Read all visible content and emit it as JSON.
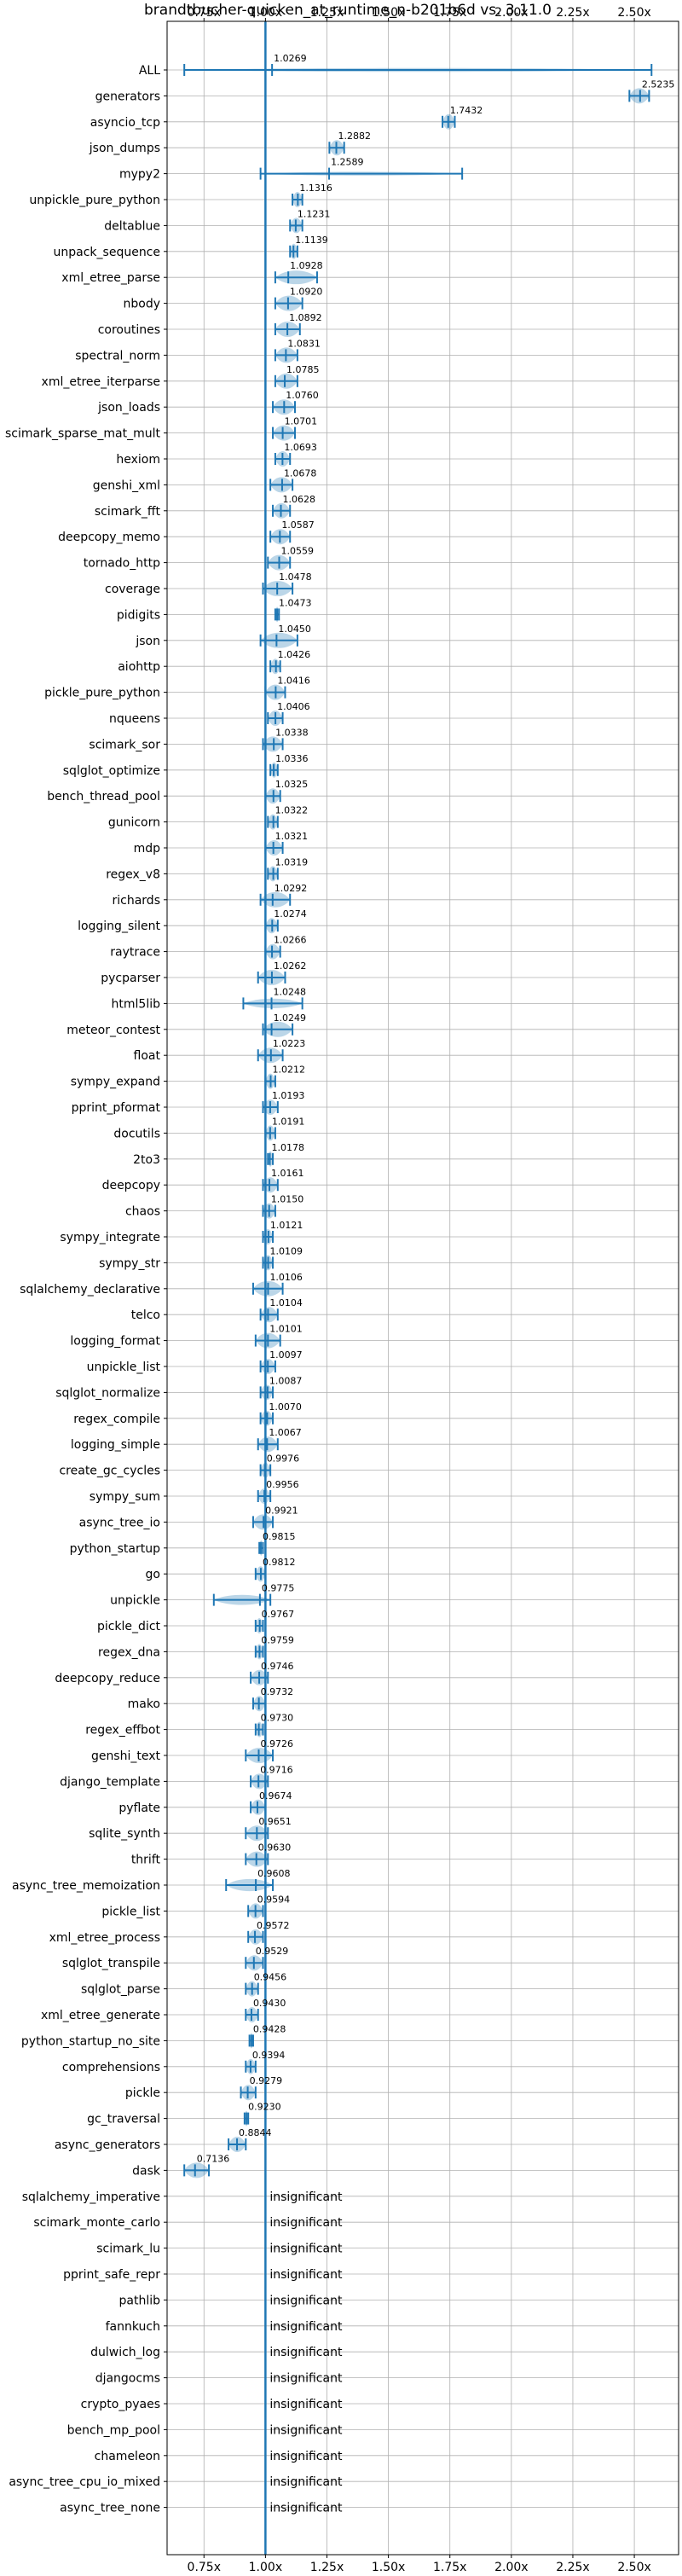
{
  "chart_data": {
    "type": "violin",
    "title": "brandtbucher-quicken_at_runtime_n-b201b6d vs. 3.11.0",
    "x_ticks": [
      "0.75x",
      "1.00x",
      "1.25x",
      "1.50x",
      "1.75x",
      "2.00x",
      "2.25x",
      "2.50x"
    ],
    "x_tick_values": [
      0.75,
      1.0,
      1.25,
      1.5,
      1.75,
      2.0,
      2.25,
      2.5
    ],
    "xlim": [
      0.6,
      2.68
    ],
    "reference_line": 1.0,
    "grid": true,
    "insignificant_label": "insignificant",
    "benchmarks": [
      {
        "name": "ALL",
        "mean": 1.0269,
        "label": "1.0269",
        "lo": 0.67,
        "hi": 2.57
      },
      {
        "name": "generators",
        "mean": 2.5235,
        "label": "2.5235",
        "lo": 2.48,
        "hi": 2.56
      },
      {
        "name": "asyncio_tcp",
        "mean": 1.7432,
        "label": "1.7432",
        "lo": 1.72,
        "hi": 1.77
      },
      {
        "name": "json_dumps",
        "mean": 1.2882,
        "label": "1.2882",
        "lo": 1.26,
        "hi": 1.32
      },
      {
        "name": "mypy2",
        "mean": 1.2589,
        "label": "1.2589",
        "lo": 0.98,
        "hi": 1.8
      },
      {
        "name": "unpickle_pure_python",
        "mean": 1.1316,
        "label": "1.1316",
        "lo": 1.11,
        "hi": 1.15
      },
      {
        "name": "deltablue",
        "mean": 1.1231,
        "label": "1.1231",
        "lo": 1.1,
        "hi": 1.15
      },
      {
        "name": "unpack_sequence",
        "mean": 1.1139,
        "label": "1.1139",
        "lo": 1.1,
        "hi": 1.13
      },
      {
        "name": "xml_etree_parse",
        "mean": 1.0928,
        "label": "1.0928",
        "lo": 1.04,
        "hi": 1.21
      },
      {
        "name": "nbody",
        "mean": 1.092,
        "label": "1.0920",
        "lo": 1.04,
        "hi": 1.15
      },
      {
        "name": "coroutines",
        "mean": 1.0892,
        "label": "1.0892",
        "lo": 1.04,
        "hi": 1.14
      },
      {
        "name": "spectral_norm",
        "mean": 1.0831,
        "label": "1.0831",
        "lo": 1.04,
        "hi": 1.13
      },
      {
        "name": "xml_etree_iterparse",
        "mean": 1.0785,
        "label": "1.0785",
        "lo": 1.04,
        "hi": 1.13
      },
      {
        "name": "json_loads",
        "mean": 1.076,
        "label": "1.0760",
        "lo": 1.03,
        "hi": 1.12
      },
      {
        "name": "scimark_sparse_mat_mult",
        "mean": 1.0701,
        "label": "1.0701",
        "lo": 1.03,
        "hi": 1.12
      },
      {
        "name": "hexiom",
        "mean": 1.0693,
        "label": "1.0693",
        "lo": 1.04,
        "hi": 1.1
      },
      {
        "name": "genshi_xml",
        "mean": 1.0678,
        "label": "1.0678",
        "lo": 1.02,
        "hi": 1.11
      },
      {
        "name": "scimark_fft",
        "mean": 1.0628,
        "label": "1.0628",
        "lo": 1.03,
        "hi": 1.1
      },
      {
        "name": "deepcopy_memo",
        "mean": 1.0587,
        "label": "1.0587",
        "lo": 1.02,
        "hi": 1.1
      },
      {
        "name": "tornado_http",
        "mean": 1.0559,
        "label": "1.0559",
        "lo": 1.01,
        "hi": 1.1
      },
      {
        "name": "coverage",
        "mean": 1.0478,
        "label": "1.0478",
        "lo": 0.99,
        "hi": 1.11
      },
      {
        "name": "pidigits",
        "mean": 1.0473,
        "label": "1.0473",
        "lo": 1.04,
        "hi": 1.055
      },
      {
        "name": "json",
        "mean": 1.045,
        "label": "1.0450",
        "lo": 0.98,
        "hi": 1.13
      },
      {
        "name": "aiohttp",
        "mean": 1.0426,
        "label": "1.0426",
        "lo": 1.02,
        "hi": 1.06
      },
      {
        "name": "pickle_pure_python",
        "mean": 1.0416,
        "label": "1.0416",
        "lo": 1.0,
        "hi": 1.08
      },
      {
        "name": "nqueens",
        "mean": 1.0406,
        "label": "1.0406",
        "lo": 1.01,
        "hi": 1.07
      },
      {
        "name": "scimark_sor",
        "mean": 1.0338,
        "label": "1.0338",
        "lo": 0.99,
        "hi": 1.07
      },
      {
        "name": "sqlglot_optimize",
        "mean": 1.0336,
        "label": "1.0336",
        "lo": 1.02,
        "hi": 1.05
      },
      {
        "name": "bench_thread_pool",
        "mean": 1.0325,
        "label": "1.0325",
        "lo": 1.0,
        "hi": 1.06
      },
      {
        "name": "gunicorn",
        "mean": 1.0322,
        "label": "1.0322",
        "lo": 1.01,
        "hi": 1.05
      },
      {
        "name": "mdp",
        "mean": 1.0321,
        "label": "1.0321",
        "lo": 1.0,
        "hi": 1.07
      },
      {
        "name": "regex_v8",
        "mean": 1.0319,
        "label": "1.0319",
        "lo": 1.01,
        "hi": 1.05
      },
      {
        "name": "richards",
        "mean": 1.0292,
        "label": "1.0292",
        "lo": 0.98,
        "hi": 1.1
      },
      {
        "name": "logging_silent",
        "mean": 1.0274,
        "label": "1.0274",
        "lo": 1.0,
        "hi": 1.05
      },
      {
        "name": "raytrace",
        "mean": 1.0266,
        "label": "1.0266",
        "lo": 1.0,
        "hi": 1.06
      },
      {
        "name": "pycparser",
        "mean": 1.0262,
        "label": "1.0262",
        "lo": 0.97,
        "hi": 1.08
      },
      {
        "name": "html5lib",
        "mean": 1.0248,
        "label": "1.0248",
        "lo": 0.91,
        "hi": 1.15
      },
      {
        "name": "meteor_contest",
        "mean": 1.0249,
        "label": "1.0249",
        "lo": 0.99,
        "hi": 1.11
      },
      {
        "name": "float",
        "mean": 1.0223,
        "label": "1.0223",
        "lo": 0.97,
        "hi": 1.07
      },
      {
        "name": "sympy_expand",
        "mean": 1.0212,
        "label": "1.0212",
        "lo": 1.0,
        "hi": 1.04
      },
      {
        "name": "pprint_pformat",
        "mean": 1.0193,
        "label": "1.0193",
        "lo": 0.99,
        "hi": 1.05
      },
      {
        "name": "docutils",
        "mean": 1.0191,
        "label": "1.0191",
        "lo": 1.0,
        "hi": 1.04
      },
      {
        "name": "2to3",
        "mean": 1.0178,
        "label": "1.0178",
        "lo": 1.01,
        "hi": 1.03
      },
      {
        "name": "deepcopy",
        "mean": 1.0161,
        "label": "1.0161",
        "lo": 0.99,
        "hi": 1.05
      },
      {
        "name": "chaos",
        "mean": 1.015,
        "label": "1.0150",
        "lo": 0.99,
        "hi": 1.04
      },
      {
        "name": "sympy_integrate",
        "mean": 1.0121,
        "label": "1.0121",
        "lo": 0.99,
        "hi": 1.03
      },
      {
        "name": "sympy_str",
        "mean": 1.0109,
        "label": "1.0109",
        "lo": 0.99,
        "hi": 1.03
      },
      {
        "name": "sqlalchemy_declarative",
        "mean": 1.0106,
        "label": "1.0106",
        "lo": 0.95,
        "hi": 1.07
      },
      {
        "name": "telco",
        "mean": 1.0104,
        "label": "1.0104",
        "lo": 0.98,
        "hi": 1.05
      },
      {
        "name": "logging_format",
        "mean": 1.0101,
        "label": "1.0101",
        "lo": 0.96,
        "hi": 1.06
      },
      {
        "name": "unpickle_list",
        "mean": 1.0097,
        "label": "1.0097",
        "lo": 0.98,
        "hi": 1.04
      },
      {
        "name": "sqlglot_normalize",
        "mean": 1.0087,
        "label": "1.0087",
        "lo": 0.98,
        "hi": 1.03
      },
      {
        "name": "regex_compile",
        "mean": 1.007,
        "label": "1.0070",
        "lo": 0.98,
        "hi": 1.03
      },
      {
        "name": "logging_simple",
        "mean": 1.0067,
        "label": "1.0067",
        "lo": 0.97,
        "hi": 1.05
      },
      {
        "name": "create_gc_cycles",
        "mean": 0.9976,
        "label": "0.9976",
        "lo": 0.98,
        "hi": 1.02
      },
      {
        "name": "sympy_sum",
        "mean": 0.9956,
        "label": "0.9956",
        "lo": 0.97,
        "hi": 1.02
      },
      {
        "name": "async_tree_io",
        "mean": 0.9921,
        "label": "0.9921",
        "lo": 0.95,
        "hi": 1.03
      },
      {
        "name": "python_startup",
        "mean": 0.9815,
        "label": "0.9815",
        "lo": 0.975,
        "hi": 0.99
      },
      {
        "name": "go",
        "mean": 0.9812,
        "label": "0.9812",
        "lo": 0.96,
        "hi": 1.0
      },
      {
        "name": "unpickle",
        "mean": 0.9775,
        "label": "0.9775",
        "lo": 0.79,
        "hi": 1.02
      },
      {
        "name": "pickle_dict",
        "mean": 0.9767,
        "label": "0.9767",
        "lo": 0.96,
        "hi": 0.99
      },
      {
        "name": "regex_dna",
        "mean": 0.9759,
        "label": "0.9759",
        "lo": 0.96,
        "hi": 0.99
      },
      {
        "name": "deepcopy_reduce",
        "mean": 0.9746,
        "label": "0.9746",
        "lo": 0.94,
        "hi": 1.01
      },
      {
        "name": "mako",
        "mean": 0.9732,
        "label": "0.9732",
        "lo": 0.95,
        "hi": 1.0
      },
      {
        "name": "regex_effbot",
        "mean": 0.973,
        "label": "0.9730",
        "lo": 0.96,
        "hi": 0.99
      },
      {
        "name": "genshi_text",
        "mean": 0.9726,
        "label": "0.9726",
        "lo": 0.92,
        "hi": 1.03
      },
      {
        "name": "django_template",
        "mean": 0.9716,
        "label": "0.9716",
        "lo": 0.94,
        "hi": 1.01
      },
      {
        "name": "pyflate",
        "mean": 0.9674,
        "label": "0.9674",
        "lo": 0.94,
        "hi": 1.0
      },
      {
        "name": "sqlite_synth",
        "mean": 0.9651,
        "label": "0.9651",
        "lo": 0.92,
        "hi": 1.01
      },
      {
        "name": "thrift",
        "mean": 0.963,
        "label": "0.9630",
        "lo": 0.92,
        "hi": 1.01
      },
      {
        "name": "async_tree_memoization",
        "mean": 0.9608,
        "label": "0.9608",
        "lo": 0.84,
        "hi": 1.03
      },
      {
        "name": "pickle_list",
        "mean": 0.9594,
        "label": "0.9594",
        "lo": 0.93,
        "hi": 0.99
      },
      {
        "name": "xml_etree_process",
        "mean": 0.9572,
        "label": "0.9572",
        "lo": 0.93,
        "hi": 0.99
      },
      {
        "name": "sqlglot_transpile",
        "mean": 0.9529,
        "label": "0.9529",
        "lo": 0.92,
        "hi": 0.99
      },
      {
        "name": "sqlglot_parse",
        "mean": 0.9456,
        "label": "0.9456",
        "lo": 0.92,
        "hi": 0.97
      },
      {
        "name": "xml_etree_generate",
        "mean": 0.943,
        "label": "0.9430",
        "lo": 0.92,
        "hi": 0.97
      },
      {
        "name": "python_startup_no_site",
        "mean": 0.9428,
        "label": "0.9428",
        "lo": 0.935,
        "hi": 0.95
      },
      {
        "name": "comprehensions",
        "mean": 0.9394,
        "label": "0.9394",
        "lo": 0.92,
        "hi": 0.96
      },
      {
        "name": "pickle",
        "mean": 0.9279,
        "label": "0.9279",
        "lo": 0.9,
        "hi": 0.96
      },
      {
        "name": "gc_traversal",
        "mean": 0.923,
        "label": "0.9230",
        "lo": 0.915,
        "hi": 0.93
      },
      {
        "name": "async_generators",
        "mean": 0.8844,
        "label": "0.8844",
        "lo": 0.85,
        "hi": 0.92
      },
      {
        "name": "dask",
        "mean": 0.7136,
        "label": "0.7136",
        "lo": 0.67,
        "hi": 0.77
      },
      {
        "name": "sqlalchemy_imperative",
        "insignificant": true
      },
      {
        "name": "scimark_monte_carlo",
        "insignificant": true
      },
      {
        "name": "scimark_lu",
        "insignificant": true
      },
      {
        "name": "pprint_safe_repr",
        "insignificant": true
      },
      {
        "name": "pathlib",
        "insignificant": true
      },
      {
        "name": "fannkuch",
        "insignificant": true
      },
      {
        "name": "dulwich_log",
        "insignificant": true
      },
      {
        "name": "djangocms",
        "insignificant": true
      },
      {
        "name": "crypto_pyaes",
        "insignificant": true
      },
      {
        "name": "bench_mp_pool",
        "insignificant": true
      },
      {
        "name": "chameleon",
        "insignificant": true
      },
      {
        "name": "async_tree_cpu_io_mixed",
        "insignificant": true
      },
      {
        "name": "async_tree_none",
        "insignificant": true
      }
    ]
  }
}
